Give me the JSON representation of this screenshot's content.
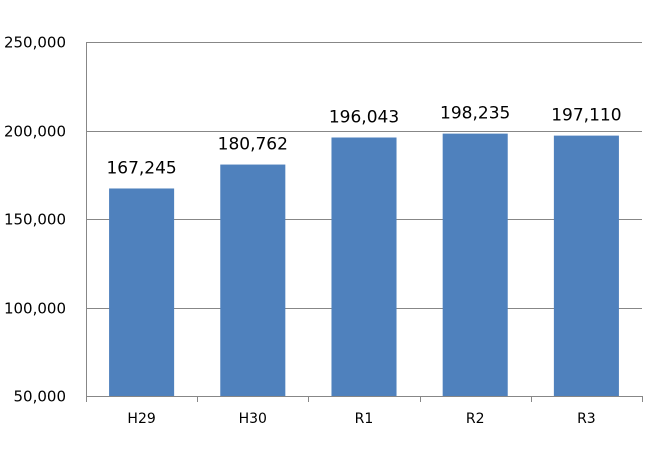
{
  "chart_data": {
    "type": "bar",
    "categories": [
      "H29",
      "H30",
      "R1",
      "R2",
      "R3"
    ],
    "values": [
      167245,
      180762,
      196043,
      198235,
      197110
    ],
    "data_labels": [
      "167,245",
      "180,762",
      "196,043",
      "198,235",
      "197,110"
    ],
    "ylim": [
      50000,
      250000
    ],
    "yticks": [
      50000,
      100000,
      150000,
      200000,
      250000
    ],
    "ytick_labels": [
      "50,000",
      "100,000",
      "150,000",
      "200,000",
      "250,000"
    ],
    "grid": true,
    "bar_color": "#4F81BD",
    "grid_color": "#878787",
    "axis_color": "#878787"
  }
}
